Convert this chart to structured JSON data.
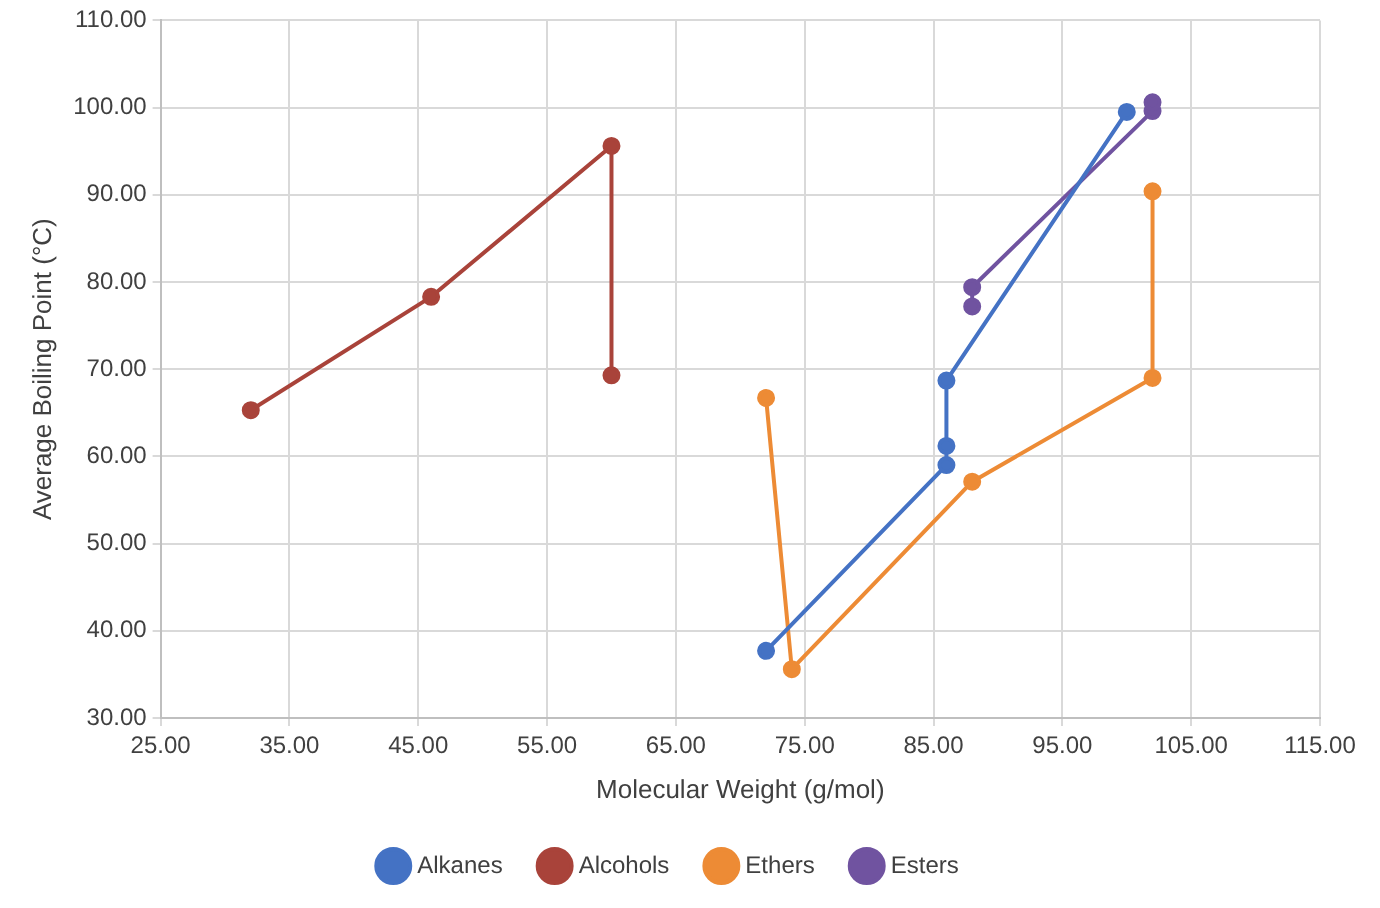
{
  "chart_data": {
    "type": "line",
    "xlabel": "Molecular Weight (g/mol)",
    "ylabel": "Average Boiling Point (°C)",
    "xlim": [
      25,
      115
    ],
    "xticks": [
      {
        "value": 25,
        "label": "25.00"
      },
      {
        "value": 35,
        "label": "35.00"
      },
      {
        "value": 45,
        "label": "45.00"
      },
      {
        "value": 55,
        "label": "55.00"
      },
      {
        "value": 65,
        "label": "65.00"
      },
      {
        "value": 75,
        "label": "75.00"
      },
      {
        "value": 85,
        "label": "85.00"
      },
      {
        "value": 95,
        "label": "95.00"
      },
      {
        "value": 105,
        "label": "105.00"
      },
      {
        "value": 115,
        "label": "115.00"
      }
    ],
    "ylim": [
      30,
      110
    ],
    "yticks": [
      {
        "value": 30,
        "label": "30.00"
      },
      {
        "value": 40,
        "label": "40.00"
      },
      {
        "value": 50,
        "label": "50.00"
      },
      {
        "value": 60,
        "label": "60.00"
      },
      {
        "value": 70,
        "label": "70.00"
      },
      {
        "value": 80,
        "label": "80.00"
      },
      {
        "value": 90,
        "label": "90.00"
      },
      {
        "value": 100,
        "label": "100.00"
      },
      {
        "value": 110,
        "label": "110.00"
      }
    ],
    "series": [
      {
        "name": "Alkanes",
        "color": "#4472c4",
        "x": [
          72,
          86,
          86,
          86,
          100
        ],
        "values": [
          37.7,
          59.0,
          61.2,
          68.7,
          99.5
        ]
      },
      {
        "name": "Alcohols",
        "color": "#a9433a",
        "x": [
          32,
          46,
          60,
          60
        ],
        "values": [
          65.3,
          78.3,
          95.6,
          69.3
        ]
      },
      {
        "name": "Ethers",
        "color": "#ed8b35",
        "x": [
          72,
          74,
          88,
          102,
          102
        ],
        "values": [
          66.7,
          35.6,
          57.1,
          69.0,
          90.4
        ]
      },
      {
        "name": "Esters",
        "color": "#7053a0",
        "x": [
          88,
          88,
          102,
          102
        ],
        "values": [
          77.2,
          79.4,
          99.6,
          100.6
        ]
      }
    ],
    "grid": true,
    "legend": "bottom",
    "marker": "circle",
    "line_style": "solid"
  }
}
